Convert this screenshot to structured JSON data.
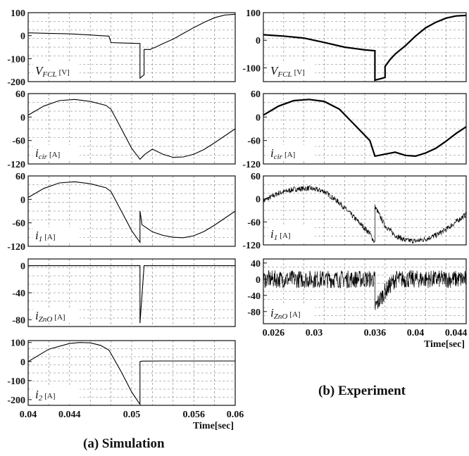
{
  "figure": {
    "caption_a": "(a) Simulation",
    "caption_b": "(b) Experiment"
  },
  "chart_data": [
    {
      "type": "line",
      "group": "simulation",
      "panel_label": {
        "main": "V",
        "sub": "FCL",
        "unit": "[V]"
      },
      "xlim": [
        0.04,
        0.06
      ],
      "ylim": [
        -200,
        100
      ],
      "yticks": [
        100,
        0,
        -100,
        -200
      ],
      "ytick_labels": [
        "100",
        "0",
        "-100",
        "-200"
      ],
      "grid": true,
      "series": [
        {
          "x": [
            0.04,
            0.042,
            0.044,
            0.046,
            0.047,
            0.0478,
            0.048,
            0.049,
            0.05,
            0.0508,
            0.0508,
            0.0512,
            0.0512,
            0.0518,
            0.052,
            0.0522,
            0.053,
            0.054,
            0.055,
            0.056,
            0.057,
            0.058,
            0.059,
            0.06
          ],
          "y": [
            12,
            10,
            8,
            3,
            0,
            -2,
            -30,
            -32,
            -33,
            -34,
            -185,
            -170,
            -60,
            -60,
            -55,
            -52,
            -35,
            -15,
            10,
            35,
            58,
            78,
            90,
            93
          ]
        }
      ]
    },
    {
      "type": "line",
      "group": "simulation",
      "panel_label": {
        "main": "i",
        "sub": "cir",
        "unit": "[A]"
      },
      "xlim": [
        0.04,
        0.06
      ],
      "ylim": [
        -120,
        60
      ],
      "yticks": [
        60,
        0,
        -60,
        -120
      ],
      "ytick_labels": [
        "60",
        "0",
        "-60",
        "-120"
      ],
      "grid": true,
      "series": [
        {
          "x": [
            0.04,
            0.0415,
            0.043,
            0.0445,
            0.046,
            0.0475,
            0.048,
            0.049,
            0.05,
            0.0508,
            0.0513,
            0.052,
            0.053,
            0.054,
            0.055,
            0.056,
            0.057,
            0.058,
            0.059,
            0.06
          ],
          "y": [
            5,
            28,
            42,
            45,
            40,
            30,
            20,
            -30,
            -80,
            -108,
            -95,
            -82,
            -95,
            -103,
            -102,
            -95,
            -83,
            -66,
            -48,
            -30
          ]
        }
      ]
    },
    {
      "type": "line",
      "group": "simulation",
      "panel_label": {
        "main": "i",
        "sub": "1",
        "unit": "[A]"
      },
      "xlim": [
        0.04,
        0.06
      ],
      "ylim": [
        -120,
        60
      ],
      "yticks": [
        60,
        0,
        -60,
        -120
      ],
      "ytick_labels": [
        "60",
        "0",
        "-60",
        "-120"
      ],
      "grid": true,
      "series": [
        {
          "x": [
            0.04,
            0.0415,
            0.043,
            0.0445,
            0.046,
            0.0475,
            0.048,
            0.049,
            0.05,
            0.0508,
            0.0508,
            0.051,
            0.052,
            0.053,
            0.054,
            0.055,
            0.056,
            0.057,
            0.058,
            0.059,
            0.06
          ],
          "y": [
            5,
            28,
            42,
            45,
            40,
            30,
            20,
            -30,
            -80,
            -110,
            -30,
            -65,
            -83,
            -92,
            -97,
            -98,
            -93,
            -82,
            -66,
            -48,
            -30
          ]
        }
      ]
    },
    {
      "type": "line",
      "group": "simulation",
      "panel_label": {
        "main": "i",
        "sub": "ZnO",
        "unit": "[A]"
      },
      "xlim": [
        0.04,
        0.06
      ],
      "ylim": [
        -90,
        10
      ],
      "yticks": [
        0,
        -40,
        -80
      ],
      "ytick_labels": [
        "0",
        "-40",
        "-80"
      ],
      "grid": true,
      "series": [
        {
          "x": [
            0.04,
            0.0508,
            0.0508,
            0.0512,
            0.06
          ],
          "y": [
            0,
            0,
            -85,
            0,
            0
          ]
        }
      ]
    },
    {
      "type": "line",
      "group": "simulation",
      "panel_label": {
        "main": "i",
        "sub": "2",
        "unit": "[A]"
      },
      "xlim": [
        0.04,
        0.06
      ],
      "ylim": [
        -230,
        110
      ],
      "yticks": [
        100,
        0,
        -100,
        -200
      ],
      "ytick_labels": [
        "100",
        "0",
        "-100",
        "-200"
      ],
      "grid": true,
      "xticks": [
        0.04,
        0.044,
        0.05,
        0.056,
        0.06
      ],
      "xtick_labels": [
        "0.04",
        "0.044",
        "0.05",
        "0.056",
        "0.06"
      ],
      "xlabel": "Time[sec]",
      "series": [
        {
          "x": [
            0.04,
            0.042,
            0.044,
            0.045,
            0.046,
            0.047,
            0.0478,
            0.049,
            0.05,
            0.0508,
            0.0508,
            0.051,
            0.053,
            0.056,
            0.06
          ],
          "y": [
            0,
            65,
            95,
            100,
            98,
            85,
            60,
            -55,
            -160,
            -225,
            0,
            2,
            3,
            3,
            3
          ]
        }
      ]
    },
    {
      "type": "line",
      "group": "experiment",
      "panel_label": {
        "main": "V",
        "sub": "FCL",
        "unit": "[V]"
      },
      "xlim": [
        0.025,
        0.045
      ],
      "ylim": [
        -150,
        100
      ],
      "yticks": [
        100,
        0,
        -100
      ],
      "ytick_labels": [
        "100",
        "0",
        "-100"
      ],
      "grid": true,
      "series": [
        {
          "x": [
            0.025,
            0.027,
            0.029,
            0.031,
            0.033,
            0.035,
            0.036,
            0.036,
            0.0365,
            0.037,
            0.037,
            0.0375,
            0.038,
            0.039,
            0.04,
            0.041,
            0.042,
            0.043,
            0.044,
            0.045
          ],
          "y": [
            20,
            15,
            8,
            -8,
            -25,
            -35,
            -38,
            -145,
            -140,
            -135,
            -95,
            -70,
            -50,
            -20,
            15,
            45,
            65,
            80,
            88,
            90
          ]
        }
      ]
    },
    {
      "type": "line",
      "group": "experiment",
      "panel_label": {
        "main": "i",
        "sub": "cir",
        "unit": "[A]"
      },
      "xlim": [
        0.025,
        0.045
      ],
      "ylim": [
        -120,
        60
      ],
      "yticks": [
        60,
        0,
        -60,
        -120
      ],
      "ytick_labels": [
        "60",
        "0",
        "-60",
        "-120"
      ],
      "grid": true,
      "series": [
        {
          "x": [
            0.025,
            0.0265,
            0.028,
            0.0295,
            0.031,
            0.0325,
            0.034,
            0.0355,
            0.036,
            0.037,
            0.038,
            0.039,
            0.04,
            0.041,
            0.042,
            0.043,
            0.044,
            0.045
          ],
          "y": [
            5,
            28,
            42,
            45,
            40,
            20,
            -20,
            -60,
            -100,
            -95,
            -90,
            -98,
            -100,
            -92,
            -80,
            -62,
            -42,
            -25
          ]
        }
      ]
    },
    {
      "type": "line",
      "group": "experiment",
      "panel_label": {
        "main": "i",
        "sub": "1",
        "unit": "[A]"
      },
      "xlim": [
        0.025,
        0.045
      ],
      "ylim": [
        -120,
        60
      ],
      "yticks": [
        60,
        0,
        -60,
        -120
      ],
      "ytick_labels": [
        "60",
        "0",
        "-60",
        "-120"
      ],
      "grid": true,
      "noise": 7,
      "series": [
        {
          "x": [
            0.025,
            0.0265,
            0.028,
            0.0295,
            0.031,
            0.0325,
            0.034,
            0.0355,
            0.036,
            0.036,
            0.037,
            0.038,
            0.039,
            0.04,
            0.041,
            0.042,
            0.043,
            0.044,
            0.045
          ],
          "y": [
            -5,
            15,
            25,
            28,
            20,
            -10,
            -50,
            -90,
            -115,
            -20,
            -70,
            -95,
            -108,
            -110,
            -105,
            -95,
            -80,
            -60,
            -40
          ]
        }
      ]
    },
    {
      "type": "line",
      "group": "experiment",
      "panel_label": {
        "main": "i",
        "sub": "ZnO",
        "unit": "[A]"
      },
      "xlim": [
        0.025,
        0.045
      ],
      "ylim": [
        -110,
        50
      ],
      "yticks": [
        40,
        0,
        -40,
        -80
      ],
      "ytick_labels": [
        "40",
        "0",
        "-40",
        "-80"
      ],
      "grid": true,
      "noise": 22,
      "xticks": [
        0.026,
        0.03,
        0.036,
        0.04,
        0.044
      ],
      "xtick_labels": [
        "0.026",
        "0.03",
        "0.036",
        "0.04",
        "0.044"
      ],
      "xlabel": "Time[sec]",
      "series": [
        {
          "x": [
            0.025,
            0.036,
            0.036,
            0.0365,
            0.037,
            0.0375,
            0.038,
            0.045
          ],
          "y": [
            0,
            0,
            -70,
            -50,
            -30,
            -15,
            0,
            0
          ]
        }
      ]
    }
  ]
}
